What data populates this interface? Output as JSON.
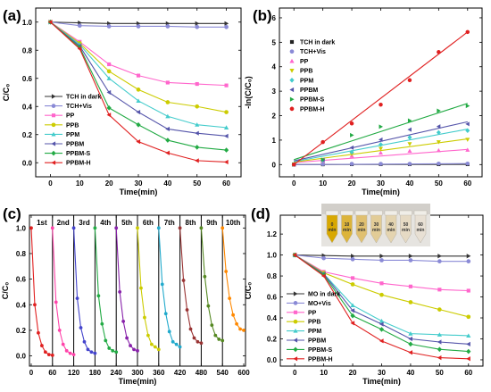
{
  "chart_data": [
    {
      "id": "a",
      "type": "line",
      "panel_label": "(a)",
      "xlabel": "Time(min)",
      "ylabel": "C/C₀",
      "xlim": [
        -5,
        65
      ],
      "ylim": [
        -0.1,
        1.1
      ],
      "xticks": [
        0,
        10,
        20,
        30,
        40,
        50,
        60
      ],
      "yticks": [
        0.0,
        0.2,
        0.4,
        0.6,
        0.8,
        1.0
      ],
      "ytick_labels": [
        "0.0",
        "0.2",
        "0.4",
        "0.6",
        "0.8",
        "1.0"
      ],
      "legend_position": "left-middle",
      "series": [
        {
          "name": "TCH in dark",
          "color": "#333333",
          "marker": "tri-right",
          "x": [
            0,
            10,
            20,
            30,
            40,
            50,
            60
          ],
          "y": [
            1.0,
            0.995,
            0.99,
            0.99,
            0.99,
            0.99,
            0.99
          ]
        },
        {
          "name": "TCH+Vis",
          "color": "#8a8ad6",
          "marker": "circle",
          "x": [
            0,
            10,
            20,
            30,
            40,
            50,
            60
          ],
          "y": [
            1.0,
            0.975,
            0.97,
            0.97,
            0.97,
            0.965,
            0.965
          ]
        },
        {
          "name": "PP",
          "color": "#ff66cc",
          "marker": "square",
          "x": [
            0,
            10,
            20,
            30,
            40,
            50,
            60
          ],
          "y": [
            1.0,
            0.86,
            0.7,
            0.62,
            0.57,
            0.56,
            0.55
          ]
        },
        {
          "name": "PPB",
          "color": "#cccc00",
          "marker": "circle",
          "x": [
            0,
            10,
            20,
            30,
            40,
            50,
            60
          ],
          "y": [
            1.0,
            0.85,
            0.65,
            0.52,
            0.43,
            0.4,
            0.36
          ]
        },
        {
          "name": "PPM",
          "color": "#44cccc",
          "marker": "tri-up",
          "x": [
            0,
            10,
            20,
            30,
            40,
            50,
            60
          ],
          "y": [
            1.0,
            0.84,
            0.6,
            0.44,
            0.33,
            0.27,
            0.25
          ]
        },
        {
          "name": "PPBM",
          "color": "#5555aa",
          "marker": "tri-left",
          "x": [
            0,
            10,
            20,
            30,
            40,
            50,
            60
          ],
          "y": [
            1.0,
            0.83,
            0.5,
            0.36,
            0.24,
            0.21,
            0.19
          ]
        },
        {
          "name": "PPBM-S",
          "color": "#22aa44",
          "marker": "diamond",
          "x": [
            0,
            10,
            20,
            30,
            40,
            50,
            60
          ],
          "y": [
            1.0,
            0.82,
            0.39,
            0.27,
            0.16,
            0.11,
            0.09
          ]
        },
        {
          "name": "PPBM-H",
          "color": "#e02020",
          "marker": "tri-left",
          "x": [
            0,
            10,
            20,
            30,
            40,
            50,
            60
          ],
          "y": [
            1.0,
            0.81,
            0.34,
            0.15,
            0.07,
            0.015,
            0.005
          ]
        }
      ]
    },
    {
      "id": "b",
      "type": "scatter",
      "panel_label": "(b)",
      "xlabel": "Time(min)",
      "ylabel": "-ln(C/C₀)",
      "xlim": [
        -5,
        65
      ],
      "ylim": [
        -0.5,
        6.4
      ],
      "xticks": [
        0,
        10,
        20,
        30,
        40,
        50,
        60
      ],
      "yticks": [
        0,
        1,
        2,
        3,
        4,
        5,
        6
      ],
      "legend_position": "top-left",
      "series": [
        {
          "name": "TCH in dark",
          "color": "#222222",
          "marker": "square",
          "x": [
            0,
            10,
            20,
            30,
            40,
            50,
            60
          ],
          "y": [
            0,
            0.005,
            0.01,
            0.01,
            0.01,
            0.01,
            0.01
          ],
          "fit": [
            0.0,
            0.01
          ]
        },
        {
          "name": "TCH+Vis",
          "color": "#8a8ad6",
          "marker": "circle",
          "x": [
            0,
            10,
            20,
            30,
            40,
            50,
            60
          ],
          "y": [
            0,
            0.02,
            0.03,
            0.03,
            0.03,
            0.04,
            0.04
          ],
          "fit": [
            0.0,
            0.04
          ]
        },
        {
          "name": "PP",
          "color": "#ff66cc",
          "marker": "tri-up",
          "x": [
            0,
            10,
            20,
            30,
            40,
            50,
            60
          ],
          "y": [
            0,
            0.15,
            0.36,
            0.48,
            0.56,
            0.58,
            0.6
          ],
          "fit": [
            0.08,
            0.62
          ]
        },
        {
          "name": "PPB",
          "color": "#cccc00",
          "marker": "tri-down",
          "x": [
            0,
            10,
            20,
            30,
            40,
            50,
            60
          ],
          "y": [
            0,
            0.16,
            0.43,
            0.65,
            0.84,
            0.92,
            1.02
          ],
          "fit": [
            0.1,
            1.05
          ]
        },
        {
          "name": "PPM",
          "color": "#44cccc",
          "marker": "diamond",
          "x": [
            0,
            10,
            20,
            30,
            40,
            50,
            60
          ],
          "y": [
            0,
            0.17,
            0.51,
            0.82,
            1.11,
            1.31,
            1.39
          ],
          "fit": [
            0.12,
            1.45
          ]
        },
        {
          "name": "PPBM",
          "color": "#5555aa",
          "marker": "tri-left",
          "x": [
            0,
            10,
            20,
            30,
            40,
            50,
            60
          ],
          "y": [
            0,
            0.19,
            0.69,
            1.02,
            1.43,
            1.56,
            1.66
          ],
          "fit": [
            0.15,
            1.75
          ]
        },
        {
          "name": "PPBM-S",
          "color": "#22aa44",
          "marker": "tri-right",
          "x": [
            0,
            10,
            20,
            30,
            40,
            50,
            60
          ],
          "y": [
            0,
            0.2,
            1.2,
            1.55,
            1.8,
            2.2,
            2.4
          ],
          "fit": [
            0.2,
            2.5
          ]
        },
        {
          "name": "PPBM-H",
          "color": "#e02020",
          "marker": "circle",
          "x": [
            0,
            10,
            20,
            30,
            40,
            50,
            60
          ],
          "y": [
            0,
            0.92,
            1.68,
            2.45,
            3.45,
            4.6,
            5.42
          ],
          "fit": [
            0.0,
            5.42
          ]
        }
      ]
    },
    {
      "id": "c",
      "type": "line",
      "panel_label": "(c)",
      "xlabel": "Time(min)",
      "ylabel": "C/C₀",
      "xlim": [
        -5,
        605
      ],
      "ylim": [
        -0.08,
        1.1
      ],
      "xticks": [
        0,
        60,
        120,
        180,
        240,
        300,
        360,
        420,
        480,
        540,
        600
      ],
      "yticks": [
        0.0,
        0.2,
        0.4,
        0.6,
        0.8,
        1.0
      ],
      "ytick_labels": [
        "0.0",
        "0.2",
        "0.4",
        "0.6",
        "0.8",
        "1.0"
      ],
      "cycle_labels": [
        "1st",
        "2nd",
        "3rd",
        "4th",
        "5th",
        "6th",
        "7th",
        "8th",
        "9th",
        "10th"
      ],
      "cycle_colors": [
        "#e02020",
        "#ff44aa",
        "#4444cc",
        "#22aa44",
        "#8822aa",
        "#cccc00",
        "#22aacc",
        "#993333",
        "#558822",
        "#ff8800"
      ],
      "cycle_x": [
        0,
        10,
        20,
        30,
        40,
        50,
        60
      ],
      "cycles": [
        [
          1.0,
          0.4,
          0.18,
          0.08,
          0.03,
          0.01,
          0.005
        ],
        [
          1.0,
          0.42,
          0.2,
          0.09,
          0.04,
          0.02,
          0.01
        ],
        [
          1.0,
          0.45,
          0.22,
          0.11,
          0.05,
          0.03,
          0.02
        ],
        [
          1.0,
          0.47,
          0.25,
          0.12,
          0.06,
          0.04,
          0.03
        ],
        [
          1.0,
          0.5,
          0.27,
          0.14,
          0.08,
          0.05,
          0.04
        ],
        [
          1.0,
          0.53,
          0.3,
          0.16,
          0.09,
          0.07,
          0.05
        ],
        [
          1.0,
          0.56,
          0.33,
          0.19,
          0.11,
          0.09,
          0.07
        ],
        [
          1.0,
          0.59,
          0.36,
          0.21,
          0.14,
          0.11,
          0.1
        ],
        [
          1.0,
          0.62,
          0.39,
          0.24,
          0.16,
          0.13,
          0.12
        ],
        [
          1.0,
          0.66,
          0.45,
          0.32,
          0.25,
          0.21,
          0.2
        ]
      ]
    },
    {
      "id": "d",
      "type": "line",
      "panel_label": "(d)",
      "xlabel": "Time(min)",
      "ylabel": "C/C₀",
      "xlim": [
        -5,
        65
      ],
      "ylim": [
        -0.06,
        1.38
      ],
      "xticks": [
        0,
        10,
        20,
        30,
        40,
        50,
        60
      ],
      "yticks": [
        0.0,
        0.2,
        0.4,
        0.6,
        0.8,
        1.0,
        1.2
      ],
      "ytick_labels": [
        "0.0",
        "0.2",
        "0.4",
        "0.6",
        "0.8",
        "1.0",
        "1.2"
      ],
      "legend_position": "left-lower",
      "photo_labels": [
        "0\nmin",
        "10\nmin",
        "20\nmin",
        "30\nmin",
        "40\nmin",
        "50\nmin",
        "60\nmin"
      ],
      "series": [
        {
          "name": "MO in dark",
          "color": "#333333",
          "marker": "tri-right",
          "x": [
            0,
            10,
            20,
            30,
            40,
            50,
            60
          ],
          "y": [
            1.0,
            0.995,
            0.99,
            0.99,
            0.99,
            0.99,
            0.99
          ]
        },
        {
          "name": "MO+Vis",
          "color": "#8a8ad6",
          "marker": "circle",
          "x": [
            0,
            10,
            20,
            30,
            40,
            50,
            60
          ],
          "y": [
            1.0,
            0.97,
            0.96,
            0.95,
            0.95,
            0.94,
            0.94
          ]
        },
        {
          "name": "PP",
          "color": "#ff66cc",
          "marker": "square",
          "x": [
            0,
            10,
            20,
            30,
            40,
            50,
            60
          ],
          "y": [
            1.0,
            0.84,
            0.78,
            0.73,
            0.7,
            0.67,
            0.66
          ]
        },
        {
          "name": "PPB",
          "color": "#cccc00",
          "marker": "circle",
          "x": [
            0,
            10,
            20,
            30,
            40,
            50,
            60
          ],
          "y": [
            1.0,
            0.83,
            0.72,
            0.62,
            0.55,
            0.48,
            0.41
          ]
        },
        {
          "name": "PPM",
          "color": "#44cccc",
          "marker": "tri-up",
          "x": [
            0,
            10,
            20,
            30,
            40,
            50,
            60
          ],
          "y": [
            1.0,
            0.82,
            0.52,
            0.37,
            0.25,
            0.24,
            0.23
          ]
        },
        {
          "name": "PPBM",
          "color": "#5555aa",
          "marker": "tri-left",
          "x": [
            0,
            10,
            20,
            30,
            40,
            50,
            60
          ],
          "y": [
            1.0,
            0.82,
            0.47,
            0.34,
            0.2,
            0.17,
            0.15
          ]
        },
        {
          "name": "PPBM-S",
          "color": "#22aa44",
          "marker": "diamond",
          "x": [
            0,
            10,
            20,
            30,
            40,
            50,
            60
          ],
          "y": [
            1.0,
            0.81,
            0.42,
            0.29,
            0.15,
            0.1,
            0.08
          ]
        },
        {
          "name": "PPBM-H",
          "color": "#e02020",
          "marker": "tri-left",
          "x": [
            0,
            10,
            20,
            30,
            40,
            50,
            60
          ],
          "y": [
            1.0,
            0.8,
            0.35,
            0.18,
            0.07,
            0.02,
            0.01
          ]
        }
      ]
    }
  ]
}
